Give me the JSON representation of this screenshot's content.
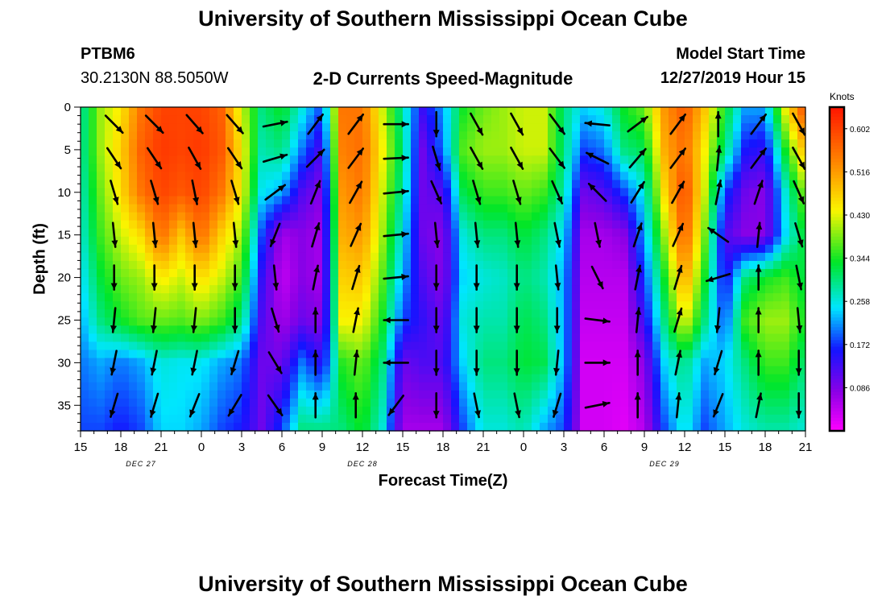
{
  "chart_data": {
    "type": "heatmap",
    "title": "University of Southern Mississippi Ocean Cube",
    "footer_title": "University of Southern Mississippi Ocean Cube",
    "station": "PTBM6",
    "location": "30.2130N 88.5050W",
    "subtitle": "2-D Currents Speed-Magnitude",
    "model_start_label": "Model Start Time",
    "model_start_value": "12/27/2019 Hour 15",
    "xlabel": "Forecast Time(Z)",
    "ylabel": "Depth (ft)",
    "units": "Knots",
    "x_hours_range": [
      0,
      54
    ],
    "ylim": [
      0,
      38
    ],
    "x_ticks": [
      {
        "hour": 0,
        "label": "15"
      },
      {
        "hour": 3,
        "label": "18"
      },
      {
        "hour": 6,
        "label": "21"
      },
      {
        "hour": 9,
        "label": "0"
      },
      {
        "hour": 12,
        "label": "3"
      },
      {
        "hour": 15,
        "label": "6"
      },
      {
        "hour": 18,
        "label": "9"
      },
      {
        "hour": 21,
        "label": "12"
      },
      {
        "hour": 24,
        "label": "15"
      },
      {
        "hour": 27,
        "label": "18"
      },
      {
        "hour": 30,
        "label": "21"
      },
      {
        "hour": 33,
        "label": "0"
      },
      {
        "hour": 36,
        "label": "3"
      },
      {
        "hour": 39,
        "label": "6"
      },
      {
        "hour": 42,
        "label": "9"
      },
      {
        "hour": 45,
        "label": "12"
      },
      {
        "hour": 48,
        "label": "15"
      },
      {
        "hour": 51,
        "label": "18"
      },
      {
        "hour": 54,
        "label": "21"
      }
    ],
    "date_labels": [
      {
        "hour": 4.5,
        "label": "DEC 27"
      },
      {
        "hour": 21,
        "label": "DEC 28"
      },
      {
        "hour": 43.5,
        "label": "DEC 29"
      }
    ],
    "y_ticks": [
      0,
      5,
      10,
      15,
      20,
      25,
      30,
      35
    ],
    "colorbar": {
      "min": 0.0,
      "max": 0.645,
      "tick_values": [
        0.602,
        0.516,
        0.43,
        0.344,
        0.258,
        0.172,
        0.086
      ],
      "tick_labels": [
        "0.602",
        "0.516",
        "0.430",
        "0.344",
        "0.258",
        "0.172",
        "0.086"
      ]
    },
    "speed_columns": [
      {
        "hour": 0,
        "profile": [
          0.28,
          0.28,
          0.27,
          0.26,
          0.24,
          0.22,
          0.2,
          0.18
        ]
      },
      {
        "hour": 1.5,
        "profile": [
          0.4,
          0.4,
          0.38,
          0.36,
          0.33,
          0.3,
          0.22,
          0.18
        ]
      },
      {
        "hour": 3,
        "profile": [
          0.45,
          0.47,
          0.46,
          0.42,
          0.38,
          0.34,
          0.2,
          0.16
        ]
      },
      {
        "hour": 4.5,
        "profile": [
          0.55,
          0.57,
          0.55,
          0.46,
          0.4,
          0.37,
          0.22,
          0.18
        ]
      },
      {
        "hour": 6,
        "profile": [
          0.6,
          0.61,
          0.6,
          0.56,
          0.45,
          0.38,
          0.26,
          0.24
        ]
      },
      {
        "hour": 7.5,
        "profile": [
          0.6,
          0.6,
          0.58,
          0.48,
          0.42,
          0.37,
          0.25,
          0.24
        ]
      },
      {
        "hour": 9,
        "profile": [
          0.6,
          0.61,
          0.6,
          0.56,
          0.46,
          0.39,
          0.25,
          0.22
        ]
      },
      {
        "hour": 10.5,
        "profile": [
          0.57,
          0.58,
          0.55,
          0.47,
          0.42,
          0.36,
          0.22,
          0.18
        ]
      },
      {
        "hour": 12,
        "profile": [
          0.42,
          0.45,
          0.44,
          0.4,
          0.36,
          0.3,
          0.2,
          0.16
        ]
      },
      {
        "hour": 13.5,
        "profile": [
          0.3,
          0.28,
          0.25,
          0.18,
          0.14,
          0.12,
          0.1,
          0.1
        ]
      },
      {
        "hour": 15,
        "profile": [
          0.34,
          0.3,
          0.22,
          0.06,
          0.04,
          0.06,
          0.1,
          0.18
        ]
      },
      {
        "hour": 16.5,
        "profile": [
          0.26,
          0.2,
          0.12,
          0.08,
          0.08,
          0.1,
          0.2,
          0.3
        ]
      },
      {
        "hour": 18,
        "profile": [
          0.18,
          0.12,
          0.08,
          0.06,
          0.06,
          0.08,
          0.14,
          0.3
        ]
      },
      {
        "hour": 19.5,
        "profile": [
          0.55,
          0.54,
          0.52,
          0.5,
          0.47,
          0.44,
          0.35,
          0.3
        ]
      },
      {
        "hour": 21,
        "profile": [
          0.55,
          0.56,
          0.55,
          0.52,
          0.48,
          0.44,
          0.38,
          0.34
        ]
      },
      {
        "hour": 22.5,
        "profile": [
          0.42,
          0.44,
          0.42,
          0.4,
          0.37,
          0.34,
          0.3,
          0.26
        ]
      },
      {
        "hour": 24,
        "profile": [
          0.28,
          0.3,
          0.28,
          0.25,
          0.22,
          0.18,
          0.1,
          0.06
        ]
      },
      {
        "hour": 25.5,
        "profile": [
          0.14,
          0.1,
          0.1,
          0.1,
          0.12,
          0.14,
          0.12,
          0.06
        ]
      },
      {
        "hour": 27,
        "profile": [
          0.22,
          0.2,
          0.12,
          0.08,
          0.08,
          0.1,
          0.12,
          0.06
        ]
      },
      {
        "hour": 28.5,
        "profile": [
          0.34,
          0.37,
          0.32,
          0.26,
          0.24,
          0.26,
          0.24,
          0.18
        ]
      },
      {
        "hour": 30,
        "profile": [
          0.38,
          0.4,
          0.36,
          0.3,
          0.26,
          0.28,
          0.3,
          0.26
        ]
      },
      {
        "hour": 31.5,
        "profile": [
          0.4,
          0.4,
          0.36,
          0.3,
          0.27,
          0.28,
          0.3,
          0.26
        ]
      },
      {
        "hour": 33,
        "profile": [
          0.42,
          0.42,
          0.38,
          0.33,
          0.3,
          0.32,
          0.33,
          0.28
        ]
      },
      {
        "hour": 34.5,
        "profile": [
          0.42,
          0.42,
          0.36,
          0.3,
          0.28,
          0.3,
          0.32,
          0.22
        ]
      },
      {
        "hour": 36,
        "profile": [
          0.3,
          0.3,
          0.28,
          0.24,
          0.22,
          0.22,
          0.22,
          0.18
        ]
      },
      {
        "hour": 37.5,
        "profile": [
          0.24,
          0.18,
          0.1,
          0.06,
          0.05,
          0.04,
          0.03,
          0.03
        ]
      },
      {
        "hour": 39,
        "profile": [
          0.26,
          0.2,
          0.12,
          0.06,
          0.05,
          0.04,
          0.03,
          0.03
        ]
      },
      {
        "hour": 40.5,
        "profile": [
          0.34,
          0.3,
          0.18,
          0.08,
          0.05,
          0.04,
          0.03,
          0.02
        ]
      },
      {
        "hour": 42,
        "profile": [
          0.38,
          0.32,
          0.26,
          0.22,
          0.18,
          0.14,
          0.08,
          0.05
        ]
      },
      {
        "hour": 43.5,
        "profile": [
          0.52,
          0.5,
          0.46,
          0.4,
          0.34,
          0.3,
          0.24,
          0.18
        ]
      },
      {
        "hour": 45,
        "profile": [
          0.58,
          0.56,
          0.6,
          0.58,
          0.52,
          0.44,
          0.3,
          0.26
        ]
      },
      {
        "hour": 46.5,
        "profile": [
          0.48,
          0.44,
          0.42,
          0.38,
          0.34,
          0.3,
          0.22,
          0.18
        ]
      },
      {
        "hour": 48,
        "profile": [
          0.34,
          0.3,
          0.18,
          0.12,
          0.14,
          0.18,
          0.24,
          0.22
        ]
      },
      {
        "hour": 49.5,
        "profile": [
          0.22,
          0.16,
          0.1,
          0.08,
          0.3,
          0.36,
          0.3,
          0.26
        ]
      },
      {
        "hour": 51,
        "profile": [
          0.22,
          0.14,
          0.08,
          0.08,
          0.34,
          0.4,
          0.36,
          0.28
        ]
      },
      {
        "hour": 52.5,
        "profile": [
          0.44,
          0.34,
          0.26,
          0.24,
          0.36,
          0.4,
          0.36,
          0.28
        ]
      },
      {
        "hour": 54,
        "profile": [
          0.6,
          0.5,
          0.4,
          0.34,
          0.32,
          0.34,
          0.3,
          0.26
        ]
      }
    ],
    "profile_depths": [
      0,
      5,
      10,
      15,
      20,
      25,
      30,
      38
    ],
    "vector_columns": [
      {
        "hour": 2.5,
        "u": [
          0.8,
          0.6,
          0.3,
          0.1,
          0.0,
          -0.1,
          -0.2,
          -0.3
        ],
        "v": [
          -0.8,
          -0.9,
          -1.0,
          -1.0,
          -1.0,
          -1.0,
          -1.0,
          -1.0
        ]
      },
      {
        "hour": 5.5,
        "u": [
          0.8,
          0.6,
          0.3,
          0.1,
          0.0,
          -0.1,
          -0.2,
          -0.3
        ],
        "v": [
          -0.8,
          -0.9,
          -1.0,
          -1.0,
          -1.0,
          -1.0,
          -1.0,
          -1.0
        ]
      },
      {
        "hour": 8.5,
        "u": [
          0.7,
          0.5,
          0.2,
          0.1,
          0.0,
          -0.1,
          -0.2,
          -0.4
        ],
        "v": [
          -0.8,
          -0.9,
          -1.0,
          -1.0,
          -1.0,
          -1.0,
          -1.0,
          -1.0
        ]
      },
      {
        "hour": 11.5,
        "u": [
          0.7,
          0.6,
          0.3,
          0.1,
          0.0,
          0.0,
          -0.3,
          -0.6
        ],
        "v": [
          -0.8,
          -0.9,
          -1.0,
          -1.0,
          -1.0,
          -1.0,
          -1.0,
          -1.0
        ]
      },
      {
        "hour": 14.5,
        "u": [
          1.0,
          1.0,
          0.8,
          -0.4,
          0.1,
          0.3,
          0.6,
          0.7
        ],
        "v": [
          0.2,
          0.3,
          0.6,
          -1.0,
          -1.0,
          -1.0,
          -1.0,
          -1.0
        ]
      },
      {
        "hour": 17.5,
        "u": [
          0.6,
          0.7,
          0.4,
          0.3,
          0.2,
          0.0,
          0.0,
          0.0
        ],
        "v": [
          0.8,
          0.7,
          1.0,
          1.0,
          1.0,
          1.0,
          1.0,
          1.0
        ]
      },
      {
        "hour": 20.5,
        "u": [
          0.6,
          0.6,
          0.5,
          0.4,
          0.3,
          0.2,
          0.1,
          0.0
        ],
        "v": [
          0.8,
          0.8,
          0.9,
          0.9,
          1.0,
          1.0,
          1.0,
          1.0
        ]
      },
      {
        "hour": 23.5,
        "u": [
          1.0,
          1.0,
          1.0,
          1.0,
          1.0,
          -1.0,
          -1.0,
          -0.6
        ],
        "v": [
          0.0,
          0.05,
          0.1,
          0.1,
          0.1,
          0.0,
          0.0,
          -0.8
        ]
      },
      {
        "hour": 26.5,
        "u": [
          0.0,
          0.3,
          0.4,
          0.1,
          0.0,
          0.0,
          0.0,
          0.0
        ],
        "v": [
          -1.0,
          -1.0,
          -0.9,
          -1.0,
          -1.0,
          -1.0,
          -1.0,
          -1.0
        ]
      },
      {
        "hour": 29.5,
        "u": [
          0.5,
          0.5,
          0.3,
          0.1,
          0.0,
          0.0,
          0.0,
          0.2
        ],
        "v": [
          -0.9,
          -0.9,
          -1.0,
          -1.0,
          -1.0,
          -1.0,
          -1.0,
          -1.0
        ]
      },
      {
        "hour": 32.5,
        "u": [
          0.5,
          0.5,
          0.3,
          0.1,
          0.0,
          0.0,
          0.0,
          0.2
        ],
        "v": [
          -0.9,
          -0.9,
          -1.0,
          -1.0,
          -1.0,
          -1.0,
          -1.0,
          -1.0
        ]
      },
      {
        "hour": 35.5,
        "u": [
          0.6,
          0.6,
          0.4,
          0.2,
          0.1,
          0.0,
          -0.1,
          -0.3
        ],
        "v": [
          -0.8,
          -0.8,
          -0.9,
          -1.0,
          -1.0,
          -1.0,
          -1.0,
          -1.0
        ]
      },
      {
        "hour": 38.5,
        "u": [
          -1.0,
          -0.8,
          -0.6,
          0.2,
          0.4,
          0.8,
          1.0,
          1.0
        ],
        "v": [
          0.1,
          0.4,
          0.6,
          -1.0,
          -0.8,
          -0.1,
          0.0,
          0.2
        ]
      },
      {
        "hour": 41.5,
        "u": [
          0.8,
          0.6,
          0.5,
          0.3,
          0.2,
          0.1,
          0.0,
          0.0
        ],
        "v": [
          0.6,
          0.7,
          0.8,
          0.9,
          1.0,
          1.0,
          1.0,
          1.0
        ]
      },
      {
        "hour": 44.5,
        "u": [
          0.6,
          0.6,
          0.5,
          0.4,
          0.3,
          0.3,
          0.2,
          0.1
        ],
        "v": [
          0.8,
          0.8,
          0.9,
          0.9,
          1.0,
          1.0,
          1.0,
          1.0
        ]
      },
      {
        "hour": 47.5,
        "u": [
          0.0,
          0.1,
          0.2,
          -1.0,
          -1.0,
          -0.1,
          -0.3,
          -0.4
        ],
        "v": [
          1.0,
          1.0,
          1.0,
          0.7,
          -0.3,
          -1.0,
          -1.0,
          -1.0
        ]
      },
      {
        "hour": 50.5,
        "u": [
          0.6,
          0.6,
          0.3,
          0.1,
          0.0,
          0.0,
          0.0,
          0.2
        ],
        "v": [
          0.8,
          0.8,
          0.9,
          1.0,
          1.0,
          1.0,
          1.0,
          1.0
        ]
      },
      {
        "hour": 53.5,
        "u": [
          0.5,
          0.5,
          0.4,
          0.3,
          0.2,
          0.1,
          0.0,
          0.0
        ],
        "v": [
          -0.9,
          -0.9,
          -0.9,
          -1.0,
          -1.0,
          -1.0,
          -1.0,
          -1.0
        ]
      }
    ],
    "vector_depths": [
      2,
      6,
      10,
      15,
      20,
      25,
      30,
      35
    ],
    "colors": {
      "arrow": "#000000",
      "frame": "#000000",
      "tick": "#000000"
    }
  }
}
